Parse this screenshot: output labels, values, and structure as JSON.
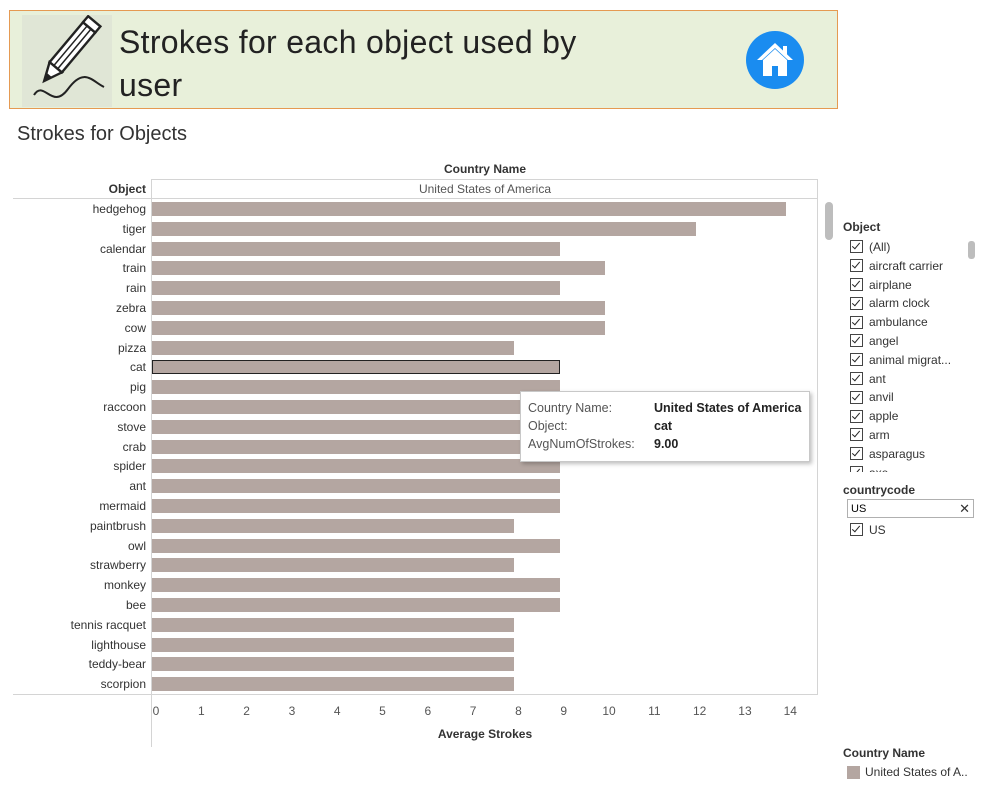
{
  "header": {
    "title_line1": "Strokes for each object used by",
    "title_line2": "user",
    "logo_icon": "pencil-icon",
    "home_icon": "home-icon",
    "home_color": "#1a8cf0"
  },
  "sheet": {
    "title": "Strokes for Objects"
  },
  "chart_data": {
    "type": "bar",
    "orientation": "horizontal",
    "column_header_title": "Country Name",
    "column_header_value": "United States of America",
    "row_header": "Object",
    "xlabel": "Average Strokes",
    "xlim": [
      0,
      14.7
    ],
    "ticks": [
      "0",
      "1",
      "2",
      "3",
      "4",
      "5",
      "6",
      "7",
      "8",
      "9",
      "10",
      "11",
      "12",
      "13",
      "14"
    ],
    "bar_color": "#b4a6a1",
    "categories": [
      "hedgehog",
      "tiger",
      "calendar",
      "train",
      "rain",
      "zebra",
      "cow",
      "pizza",
      "cat",
      "pig",
      "raccoon",
      "stove",
      "crab",
      "spider",
      "ant",
      "mermaid",
      "paintbrush",
      "owl",
      "strawberry",
      "monkey",
      "bee",
      "tennis racquet",
      "lighthouse",
      "teddy-bear",
      "scorpion"
    ],
    "values": [
      14,
      12,
      9,
      10,
      9,
      10,
      10,
      8,
      9,
      9,
      9,
      9,
      9,
      9,
      9,
      9,
      8,
      9,
      8,
      9,
      9,
      8,
      8,
      8,
      8
    ],
    "selected": "cat"
  },
  "tooltip": {
    "rows": [
      {
        "key": "Country Name:",
        "value": "United States of America"
      },
      {
        "key": "Object:",
        "value": "cat"
      },
      {
        "key": "AvgNumOfStrokes:",
        "value": "9.00"
      }
    ]
  },
  "filters": {
    "object": {
      "title": "Object",
      "items": [
        "(All)",
        "aircraft carrier",
        "airplane",
        "alarm clock",
        "ambulance",
        "angel",
        "animal migrat...",
        "ant",
        "anvil",
        "apple",
        "arm",
        "asparagus",
        "axe"
      ]
    },
    "countrycode": {
      "title": "countrycode",
      "search_value": "US",
      "items": [
        "US"
      ]
    }
  },
  "legend": {
    "title": "Country Name",
    "items": [
      {
        "label": "United States of A..",
        "color": "#b4a6a1"
      }
    ]
  }
}
